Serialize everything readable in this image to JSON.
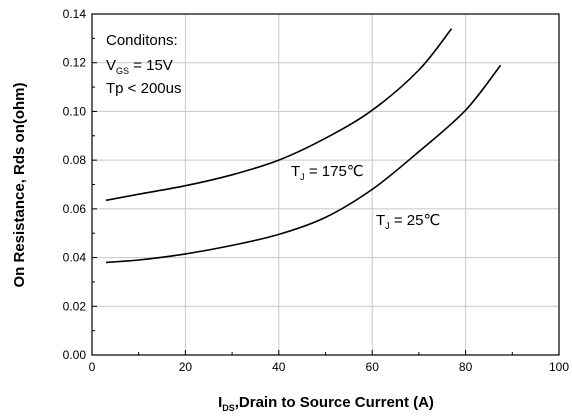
{
  "chart_data": {
    "type": "line",
    "xlabel_main": "I",
    "xlabel_sub": "DS",
    "xlabel_rest": ",Drain to Source Current (A)",
    "ylabel": "On Resistance, Rds on(ohm)",
    "xlim": [
      0,
      100
    ],
    "ylim": [
      0.0,
      0.14
    ],
    "x_ticks": [
      "0",
      "20",
      "40",
      "60",
      "80",
      "100"
    ],
    "y_ticks": [
      "0.00",
      "0.02",
      "0.04",
      "0.06",
      "0.08",
      "0.10",
      "0.12",
      "0.14"
    ],
    "grid": true,
    "legend": "none",
    "conditions": {
      "title": "Conditons:",
      "vgs_main": "V",
      "vgs_sub": "GS",
      "vgs_rest": " = 15V",
      "tp": "Tp < 200us"
    },
    "series": [
      {
        "label_main": "T",
        "label_sub": "J",
        "label_rest": " = 175℃",
        "x": [
          3,
          10,
          20,
          30,
          40,
          50,
          60,
          70,
          77
        ],
        "y": [
          0.0635,
          0.066,
          0.0695,
          0.074,
          0.08,
          0.089,
          0.1005,
          0.117,
          0.134
        ]
      },
      {
        "label_main": "T",
        "label_sub": "J",
        "label_rest": " = 25℃",
        "x": [
          3,
          10,
          20,
          30,
          40,
          50,
          60,
          70,
          80,
          87.5
        ],
        "y": [
          0.038,
          0.039,
          0.0415,
          0.045,
          0.0495,
          0.0565,
          0.068,
          0.0835,
          0.1005,
          0.119
        ]
      }
    ]
  }
}
